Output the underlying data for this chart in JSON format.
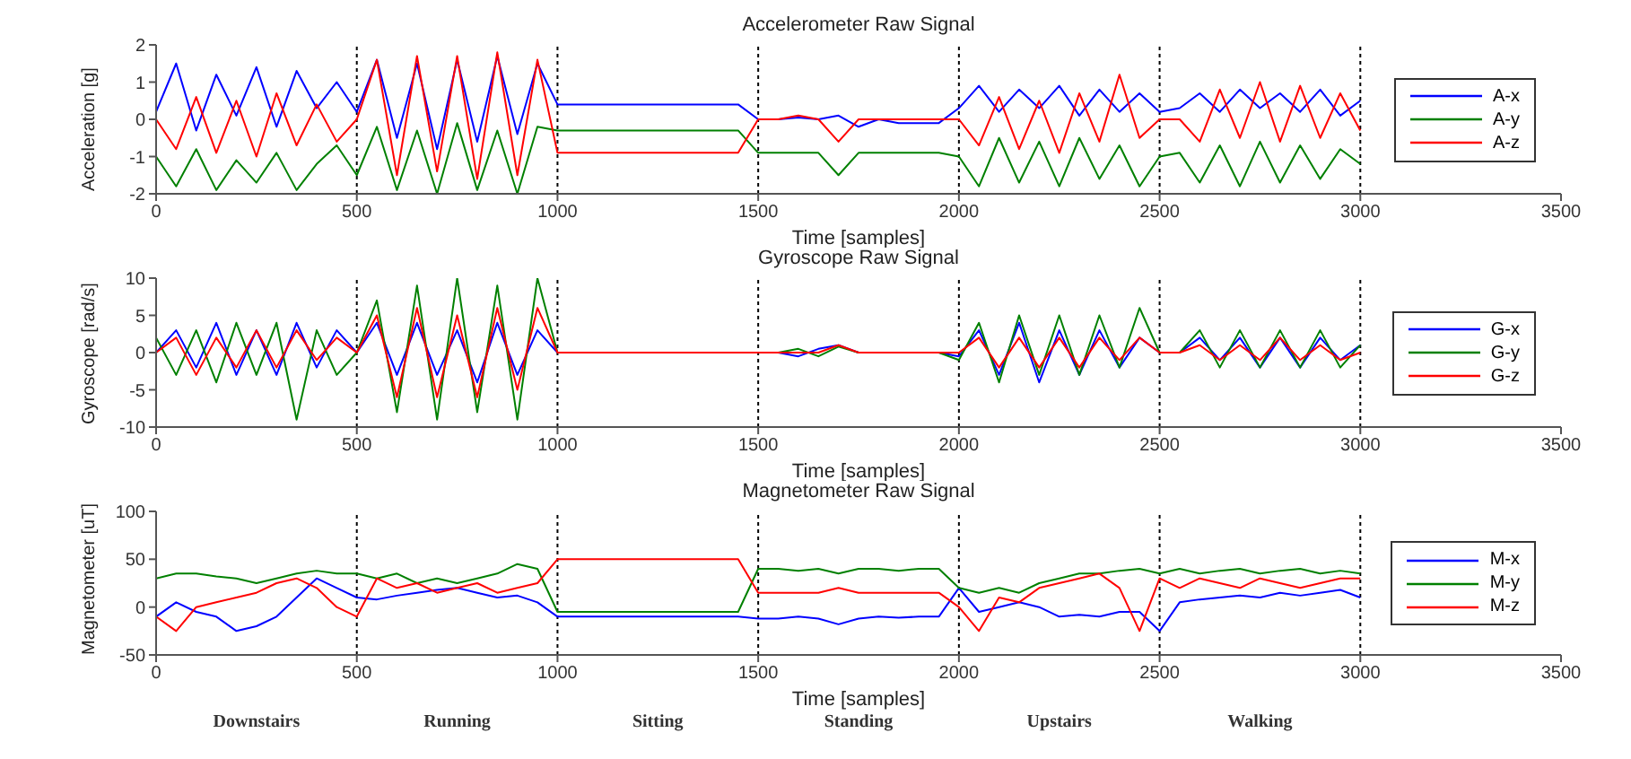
{
  "chart_data": [
    {
      "type": "line",
      "title": "Accelerometer Raw Signal",
      "xlabel": "Time [samples]",
      "ylabel": "Acceleration [g]",
      "xlim": [
        0,
        3500
      ],
      "xticks": [
        0,
        500,
        1000,
        1500,
        2000,
        2500,
        3000,
        3500
      ],
      "ylim": [
        -2,
        2
      ],
      "yticks": [
        -2,
        -1,
        0,
        1,
        2
      ],
      "grid": false,
      "legend": "right",
      "marker": "none",
      "line_style": "solid",
      "ref_lines": [
        {
          "axis": "x",
          "value": 500,
          "color": "#000000",
          "line_style": "dotted"
        },
        {
          "axis": "x",
          "value": 1000,
          "color": "#000000",
          "line_style": "dotted"
        },
        {
          "axis": "x",
          "value": 1500,
          "color": "#000000",
          "line_style": "dotted"
        },
        {
          "axis": "x",
          "value": 2000,
          "color": "#000000",
          "line_style": "dotted"
        },
        {
          "axis": "x",
          "value": 2500,
          "color": "#000000",
          "line_style": "dotted"
        },
        {
          "axis": "x",
          "value": 3000,
          "color": "#000000",
          "line_style": "dotted"
        }
      ],
      "x": [
        0,
        50,
        100,
        150,
        200,
        250,
        300,
        350,
        400,
        450,
        500,
        550,
        600,
        650,
        700,
        750,
        800,
        850,
        900,
        950,
        1000,
        1050,
        1100,
        1150,
        1200,
        1250,
        1300,
        1350,
        1400,
        1450,
        1500,
        1550,
        1600,
        1650,
        1700,
        1750,
        1800,
        1850,
        1900,
        1950,
        2000,
        2050,
        2100,
        2150,
        2200,
        2250,
        2300,
        2350,
        2400,
        2450,
        2500,
        2550,
        2600,
        2650,
        2700,
        2750,
        2800,
        2850,
        2900,
        2950,
        3000
      ],
      "series": [
        {
          "name": "A-x",
          "color": "#0000ff",
          "values": [
            0.2,
            1.5,
            -0.3,
            1.2,
            0.1,
            1.4,
            -0.2,
            1.3,
            0.3,
            1.0,
            0.2,
            1.6,
            -0.5,
            1.5,
            -0.8,
            1.6,
            -0.6,
            1.7,
            -0.4,
            1.5,
            0.4,
            0.4,
            0.4,
            0.4,
            0.4,
            0.4,
            0.4,
            0.4,
            0.4,
            0.4,
            0.0,
            0.0,
            0.05,
            0.0,
            0.1,
            -0.2,
            0.0,
            -0.1,
            -0.1,
            -0.1,
            0.3,
            0.9,
            0.2,
            0.8,
            0.3,
            0.9,
            0.1,
            0.8,
            0.2,
            0.7,
            0.2,
            0.3,
            0.7,
            0.2,
            0.8,
            0.3,
            0.7,
            0.2,
            0.8,
            0.1,
            0.5
          ]
        },
        {
          "name": "A-y",
          "color": "#008000",
          "values": [
            -1.0,
            -1.8,
            -0.8,
            -1.9,
            -1.1,
            -1.7,
            -0.9,
            -1.9,
            -1.2,
            -0.7,
            -1.5,
            -0.2,
            -1.9,
            -0.3,
            -2.0,
            -0.1,
            -1.9,
            -0.3,
            -2.0,
            -0.2,
            -0.3,
            -0.3,
            -0.3,
            -0.3,
            -0.3,
            -0.3,
            -0.3,
            -0.3,
            -0.3,
            -0.3,
            -0.9,
            -0.9,
            -0.9,
            -0.9,
            -1.5,
            -0.9,
            -0.9,
            -0.9,
            -0.9,
            -0.9,
            -1.0,
            -1.8,
            -0.5,
            -1.7,
            -0.6,
            -1.8,
            -0.5,
            -1.6,
            -0.7,
            -1.8,
            -1.0,
            -0.9,
            -1.7,
            -0.7,
            -1.8,
            -0.6,
            -1.7,
            -0.7,
            -1.6,
            -0.8,
            -1.2
          ]
        },
        {
          "name": "A-z",
          "color": "#ff0000",
          "values": [
            0.0,
            -0.8,
            0.6,
            -0.9,
            0.5,
            -1.0,
            0.7,
            -0.7,
            0.4,
            -0.6,
            0.0,
            1.6,
            -1.5,
            1.7,
            -1.4,
            1.7,
            -1.6,
            1.8,
            -1.5,
            1.6,
            -0.9,
            -0.9,
            -0.9,
            -0.9,
            -0.9,
            -0.9,
            -0.9,
            -0.9,
            -0.9,
            -0.9,
            0.0,
            0.0,
            0.1,
            0.0,
            -0.6,
            0.0,
            0.0,
            0.0,
            0.0,
            0.0,
            0.0,
            -0.7,
            0.6,
            -0.8,
            0.5,
            -0.9,
            0.7,
            -0.6,
            1.2,
            -0.5,
            0.0,
            0.0,
            -0.6,
            0.8,
            -0.5,
            1.0,
            -0.6,
            0.9,
            -0.5,
            0.7,
            -0.3
          ]
        }
      ]
    },
    {
      "type": "line",
      "title": "Gyroscope Raw Signal",
      "xlabel": "Time [samples]",
      "ylabel": "Gyroscope [rad/s]",
      "xlim": [
        0,
        3500
      ],
      "xticks": [
        0,
        500,
        1000,
        1500,
        2000,
        2500,
        3000,
        3500
      ],
      "ylim": [
        -10,
        10
      ],
      "yticks": [
        -10,
        -5,
        0,
        5,
        10
      ],
      "grid": false,
      "legend": "right",
      "marker": "none",
      "line_style": "solid",
      "ref_lines": [
        {
          "axis": "x",
          "value": 500,
          "color": "#000000",
          "line_style": "dotted"
        },
        {
          "axis": "x",
          "value": 1000,
          "color": "#000000",
          "line_style": "dotted"
        },
        {
          "axis": "x",
          "value": 1500,
          "color": "#000000",
          "line_style": "dotted"
        },
        {
          "axis": "x",
          "value": 2000,
          "color": "#000000",
          "line_style": "dotted"
        },
        {
          "axis": "x",
          "value": 2500,
          "color": "#000000",
          "line_style": "dotted"
        },
        {
          "axis": "x",
          "value": 3000,
          "color": "#000000",
          "line_style": "dotted"
        }
      ],
      "x": [
        0,
        50,
        100,
        150,
        200,
        250,
        300,
        350,
        400,
        450,
        500,
        550,
        600,
        650,
        700,
        750,
        800,
        850,
        900,
        950,
        1000,
        1050,
        1100,
        1150,
        1200,
        1250,
        1300,
        1350,
        1400,
        1450,
        1500,
        1550,
        1600,
        1650,
        1700,
        1750,
        1800,
        1850,
        1900,
        1950,
        2000,
        2050,
        2100,
        2150,
        2200,
        2250,
        2300,
        2350,
        2400,
        2450,
        2500,
        2550,
        2600,
        2650,
        2700,
        2750,
        2800,
        2850,
        2900,
        2950,
        3000
      ],
      "series": [
        {
          "name": "G-x",
          "color": "#0000ff",
          "values": [
            0,
            3,
            -2,
            4,
            -3,
            3,
            -3,
            4,
            -2,
            3,
            0,
            4,
            -3,
            4,
            -3,
            3,
            -4,
            4,
            -3,
            3,
            0,
            0,
            0,
            0,
            0,
            0,
            0,
            0,
            0,
            0,
            0,
            0,
            -0.5,
            0.5,
            1,
            0,
            0,
            0,
            0,
            0,
            -0.5,
            3,
            -3,
            4,
            -4,
            3,
            -3,
            3,
            -2,
            2,
            0,
            0,
            2,
            -1,
            2,
            -2,
            2,
            -2,
            2,
            -1,
            1
          ]
        },
        {
          "name": "G-y",
          "color": "#008000",
          "values": [
            2,
            -3,
            3,
            -4,
            4,
            -3,
            4,
            -9,
            3,
            -3,
            0,
            7,
            -8,
            9,
            -9,
            10,
            -8,
            9,
            -9,
            10,
            0,
            0,
            0,
            0,
            0,
            0,
            0,
            0,
            0,
            0,
            0,
            0,
            0.5,
            -0.5,
            0.8,
            0,
            0,
            0,
            0,
            0,
            -1,
            4,
            -4,
            5,
            -3,
            5,
            -3,
            5,
            -2,
            6,
            0,
            0,
            3,
            -2,
            3,
            -2,
            3,
            -2,
            3,
            -2,
            1
          ]
        },
        {
          "name": "G-z",
          "color": "#ff0000",
          "values": [
            0,
            2,
            -3,
            2,
            -2,
            3,
            -2,
            3,
            -1,
            2,
            0,
            5,
            -6,
            6,
            -6,
            5,
            -6,
            6,
            -5,
            6,
            0,
            0,
            0,
            0,
            0,
            0,
            0,
            0,
            0,
            0,
            0,
            0,
            0,
            0,
            1,
            0,
            0,
            0,
            0,
            0,
            0,
            2,
            -2,
            2,
            -2,
            2,
            -2,
            2,
            -1,
            2,
            0,
            0,
            1,
            -1,
            1,
            -1,
            2,
            -1,
            1,
            -1,
            0
          ]
        }
      ]
    },
    {
      "type": "line",
      "title": "Magnetometer Raw Signal",
      "xlabel": "Time [samples]",
      "ylabel": "Magnetometer [uT]",
      "xlim": [
        0,
        3500
      ],
      "xticks": [
        0,
        500,
        1000,
        1500,
        2000,
        2500,
        3000,
        3500
      ],
      "ylim": [
        -50,
        100
      ],
      "yticks": [
        -50,
        0,
        50,
        100
      ],
      "grid": false,
      "legend": "right",
      "marker": "none",
      "line_style": "solid",
      "ref_lines": [
        {
          "axis": "x",
          "value": 500,
          "color": "#000000",
          "line_style": "dotted"
        },
        {
          "axis": "x",
          "value": 1000,
          "color": "#000000",
          "line_style": "dotted"
        },
        {
          "axis": "x",
          "value": 1500,
          "color": "#000000",
          "line_style": "dotted"
        },
        {
          "axis": "x",
          "value": 2000,
          "color": "#000000",
          "line_style": "dotted"
        },
        {
          "axis": "x",
          "value": 2500,
          "color": "#000000",
          "line_style": "dotted"
        },
        {
          "axis": "x",
          "value": 3000,
          "color": "#000000",
          "line_style": "dotted"
        }
      ],
      "annotations": [
        "Downstairs",
        "Running",
        "Sitting",
        "Standing",
        "Upstairs",
        "Walking"
      ],
      "x": [
        0,
        50,
        100,
        150,
        200,
        250,
        300,
        350,
        400,
        450,
        500,
        550,
        600,
        650,
        700,
        750,
        800,
        850,
        900,
        950,
        1000,
        1050,
        1100,
        1150,
        1200,
        1250,
        1300,
        1350,
        1400,
        1450,
        1500,
        1550,
        1600,
        1650,
        1700,
        1750,
        1800,
        1850,
        1900,
        1950,
        2000,
        2050,
        2100,
        2150,
        2200,
        2250,
        2300,
        2350,
        2400,
        2450,
        2500,
        2550,
        2600,
        2650,
        2700,
        2750,
        2800,
        2850,
        2900,
        2950,
        3000
      ],
      "series": [
        {
          "name": "M-x",
          "color": "#0000ff",
          "values": [
            -10,
            5,
            -5,
            -10,
            -25,
            -20,
            -10,
            10,
            30,
            20,
            10,
            8,
            12,
            15,
            18,
            20,
            15,
            10,
            12,
            5,
            -10,
            -10,
            -10,
            -10,
            -10,
            -10,
            -10,
            -10,
            -10,
            -10,
            -12,
            -12,
            -10,
            -12,
            -18,
            -12,
            -10,
            -11,
            -10,
            -10,
            20,
            -5,
            0,
            5,
            0,
            -10,
            -8,
            -10,
            -5,
            -5,
            -25,
            5,
            8,
            10,
            12,
            10,
            15,
            12,
            15,
            18,
            10
          ]
        },
        {
          "name": "M-y",
          "color": "#008000",
          "values": [
            30,
            35,
            35,
            32,
            30,
            25,
            30,
            35,
            38,
            35,
            35,
            30,
            35,
            25,
            30,
            25,
            30,
            35,
            45,
            40,
            -5,
            -5,
            -5,
            -5,
            -5,
            -5,
            -5,
            -5,
            -5,
            -5,
            40,
            40,
            38,
            40,
            35,
            40,
            40,
            38,
            40,
            40,
            20,
            15,
            20,
            15,
            25,
            30,
            35,
            35,
            38,
            40,
            35,
            40,
            35,
            38,
            40,
            35,
            38,
            40,
            35,
            38,
            35
          ]
        },
        {
          "name": "M-z",
          "color": "#ff0000",
          "values": [
            -10,
            -25,
            0,
            5,
            10,
            15,
            25,
            30,
            20,
            0,
            -10,
            30,
            20,
            25,
            15,
            20,
            25,
            15,
            20,
            25,
            50,
            50,
            50,
            50,
            50,
            50,
            50,
            50,
            50,
            50,
            15,
            15,
            15,
            15,
            20,
            15,
            15,
            15,
            15,
            15,
            0,
            -25,
            10,
            5,
            20,
            25,
            30,
            35,
            20,
            -25,
            30,
            20,
            30,
            25,
            20,
            30,
            25,
            20,
            25,
            30,
            30
          ]
        }
      ]
    }
  ]
}
